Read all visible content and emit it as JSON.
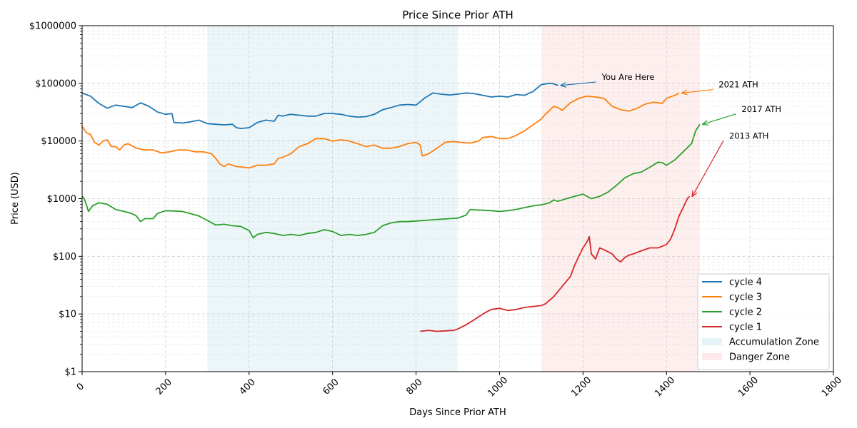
{
  "chart_data": {
    "type": "line",
    "title": "Price Since Prior ATH",
    "xlabel": "Days Since Prior ATH",
    "ylabel": "Price (USD)",
    "xlim": [
      0,
      1800
    ],
    "ylim": [
      1,
      1000000
    ],
    "yscale": "log",
    "grid": true,
    "legend_position": "lower-right",
    "x_ticks": [
      {
        "value": 0,
        "label": "0"
      },
      {
        "value": 200,
        "label": "200"
      },
      {
        "value": 400,
        "label": "400"
      },
      {
        "value": 600,
        "label": "600"
      },
      {
        "value": 800,
        "label": "800"
      },
      {
        "value": 1000,
        "label": "1000"
      },
      {
        "value": 1200,
        "label": "1200"
      },
      {
        "value": 1400,
        "label": "1400"
      },
      {
        "value": 1600,
        "label": "1600"
      },
      {
        "value": 1800,
        "label": "1800"
      }
    ],
    "y_ticks": [
      {
        "value": 1,
        "label": "$1"
      },
      {
        "value": 10,
        "label": "$10"
      },
      {
        "value": 100,
        "label": "$100"
      },
      {
        "value": 1000,
        "label": "$1000"
      },
      {
        "value": 10000,
        "label": "$10000"
      },
      {
        "value": 100000,
        "label": "$100000"
      },
      {
        "value": 1000000,
        "label": "$1000000"
      }
    ],
    "zones": [
      {
        "name": "Accumulation Zone",
        "x_start": 300,
        "x_end": 900,
        "color": "#dff0f5"
      },
      {
        "name": "Danger Zone",
        "x_start": 1100,
        "x_end": 1480,
        "color": "#fde4e4"
      }
    ],
    "series": [
      {
        "name": "cycle 4",
        "color": "#1f77b4",
        "points": [
          [
            0,
            68000
          ],
          [
            20,
            60000
          ],
          [
            40,
            45000
          ],
          [
            60,
            37000
          ],
          [
            80,
            42000
          ],
          [
            100,
            40000
          ],
          [
            120,
            38000
          ],
          [
            140,
            46000
          ],
          [
            160,
            40000
          ],
          [
            180,
            32000
          ],
          [
            200,
            29000
          ],
          [
            215,
            30000
          ],
          [
            220,
            21000
          ],
          [
            240,
            20500
          ],
          [
            260,
            21500
          ],
          [
            280,
            23000
          ],
          [
            300,
            20000
          ],
          [
            320,
            19500
          ],
          [
            340,
            19000
          ],
          [
            360,
            19500
          ],
          [
            370,
            17000
          ],
          [
            380,
            16500
          ],
          [
            400,
            17000
          ],
          [
            420,
            21000
          ],
          [
            440,
            23000
          ],
          [
            460,
            22000
          ],
          [
            470,
            28000
          ],
          [
            480,
            27000
          ],
          [
            500,
            29000
          ],
          [
            520,
            28000
          ],
          [
            540,
            27000
          ],
          [
            560,
            27000
          ],
          [
            580,
            30000
          ],
          [
            600,
            30000
          ],
          [
            620,
            29000
          ],
          [
            640,
            27000
          ],
          [
            660,
            26000
          ],
          [
            680,
            26500
          ],
          [
            700,
            29000
          ],
          [
            720,
            35000
          ],
          [
            740,
            38000
          ],
          [
            760,
            42000
          ],
          [
            780,
            43000
          ],
          [
            800,
            42000
          ],
          [
            820,
            55000
          ],
          [
            840,
            68000
          ],
          [
            860,
            65000
          ],
          [
            880,
            63000
          ],
          [
            900,
            65000
          ],
          [
            920,
            68000
          ],
          [
            940,
            66000
          ],
          [
            960,
            62000
          ],
          [
            980,
            58000
          ],
          [
            1000,
            60000
          ],
          [
            1020,
            58000
          ],
          [
            1040,
            64000
          ],
          [
            1060,
            62000
          ],
          [
            1080,
            72000
          ],
          [
            1100,
            95000
          ],
          [
            1120,
            100000
          ],
          [
            1130,
            98000
          ],
          [
            1140,
            92000
          ]
        ]
      },
      {
        "name": "cycle 3",
        "color": "#ff7f0e",
        "points": [
          [
            0,
            18000
          ],
          [
            10,
            14000
          ],
          [
            20,
            13000
          ],
          [
            30,
            9500
          ],
          [
            40,
            8500
          ],
          [
            50,
            10000
          ],
          [
            60,
            10500
          ],
          [
            70,
            8000
          ],
          [
            80,
            8000
          ],
          [
            90,
            7000
          ],
          [
            100,
            8500
          ],
          [
            110,
            9000
          ],
          [
            130,
            7500
          ],
          [
            150,
            7000
          ],
          [
            170,
            7000
          ],
          [
            190,
            6200
          ],
          [
            210,
            6500
          ],
          [
            230,
            7000
          ],
          [
            250,
            7000
          ],
          [
            270,
            6500
          ],
          [
            290,
            6500
          ],
          [
            310,
            6000
          ],
          [
            320,
            5000
          ],
          [
            330,
            4000
          ],
          [
            340,
            3600
          ],
          [
            350,
            4000
          ],
          [
            370,
            3600
          ],
          [
            390,
            3500
          ],
          [
            400,
            3400
          ],
          [
            420,
            3800
          ],
          [
            440,
            3800
          ],
          [
            460,
            4000
          ],
          [
            470,
            5000
          ],
          [
            480,
            5200
          ],
          [
            500,
            6000
          ],
          [
            520,
            8000
          ],
          [
            540,
            9000
          ],
          [
            560,
            11000
          ],
          [
            580,
            11000
          ],
          [
            600,
            10000
          ],
          [
            620,
            10500
          ],
          [
            640,
            10000
          ],
          [
            660,
            9000
          ],
          [
            680,
            8000
          ],
          [
            700,
            8500
          ],
          [
            720,
            7500
          ],
          [
            740,
            7500
          ],
          [
            760,
            8000
          ],
          [
            780,
            9000
          ],
          [
            800,
            9500
          ],
          [
            810,
            8500
          ],
          [
            815,
            5500
          ],
          [
            830,
            6000
          ],
          [
            850,
            7500
          ],
          [
            870,
            9500
          ],
          [
            890,
            9800
          ],
          [
            910,
            9400
          ],
          [
            930,
            9200
          ],
          [
            950,
            10000
          ],
          [
            960,
            11500
          ],
          [
            980,
            12000
          ],
          [
            1000,
            11000
          ],
          [
            1020,
            11000
          ],
          [
            1040,
            12500
          ],
          [
            1060,
            15000
          ],
          [
            1080,
            19000
          ],
          [
            1100,
            24000
          ],
          [
            1110,
            29000
          ],
          [
            1120,
            34000
          ],
          [
            1130,
            40000
          ],
          [
            1140,
            38000
          ],
          [
            1150,
            34000
          ],
          [
            1170,
            46000
          ],
          [
            1190,
            55000
          ],
          [
            1210,
            60000
          ],
          [
            1230,
            58000
          ],
          [
            1250,
            55000
          ],
          [
            1270,
            40000
          ],
          [
            1290,
            35000
          ],
          [
            1310,
            33000
          ],
          [
            1330,
            37000
          ],
          [
            1350,
            44000
          ],
          [
            1370,
            47000
          ],
          [
            1390,
            45000
          ],
          [
            1400,
            55000
          ],
          [
            1420,
            62000
          ],
          [
            1430,
            68000
          ]
        ]
      },
      {
        "name": "cycle 2",
        "color": "#2ca02c",
        "points": [
          [
            0,
            1100
          ],
          [
            5,
            1000
          ],
          [
            10,
            800
          ],
          [
            15,
            600
          ],
          [
            25,
            750
          ],
          [
            40,
            850
          ],
          [
            60,
            800
          ],
          [
            80,
            650
          ],
          [
            100,
            600
          ],
          [
            120,
            550
          ],
          [
            130,
            500
          ],
          [
            140,
            400
          ],
          [
            150,
            450
          ],
          [
            170,
            450
          ],
          [
            180,
            550
          ],
          [
            200,
            620
          ],
          [
            220,
            610
          ],
          [
            240,
            600
          ],
          [
            260,
            550
          ],
          [
            280,
            500
          ],
          [
            300,
            420
          ],
          [
            320,
            350
          ],
          [
            340,
            360
          ],
          [
            360,
            340
          ],
          [
            380,
            330
          ],
          [
            400,
            280
          ],
          [
            410,
            210
          ],
          [
            420,
            240
          ],
          [
            440,
            260
          ],
          [
            460,
            250
          ],
          [
            480,
            230
          ],
          [
            500,
            240
          ],
          [
            520,
            230
          ],
          [
            540,
            250
          ],
          [
            560,
            260
          ],
          [
            580,
            290
          ],
          [
            600,
            270
          ],
          [
            620,
            230
          ],
          [
            640,
            240
          ],
          [
            660,
            230
          ],
          [
            680,
            240
          ],
          [
            700,
            260
          ],
          [
            720,
            340
          ],
          [
            740,
            380
          ],
          [
            760,
            400
          ],
          [
            780,
            400
          ],
          [
            800,
            410
          ],
          [
            820,
            420
          ],
          [
            840,
            430
          ],
          [
            860,
            440
          ],
          [
            880,
            450
          ],
          [
            900,
            460
          ],
          [
            920,
            520
          ],
          [
            930,
            650
          ],
          [
            940,
            640
          ],
          [
            960,
            630
          ],
          [
            980,
            620
          ],
          [
            1000,
            600
          ],
          [
            1020,
            620
          ],
          [
            1040,
            650
          ],
          [
            1060,
            700
          ],
          [
            1080,
            750
          ],
          [
            1100,
            780
          ],
          [
            1120,
            850
          ],
          [
            1130,
            950
          ],
          [
            1140,
            900
          ],
          [
            1160,
            1000
          ],
          [
            1180,
            1100
          ],
          [
            1200,
            1200
          ],
          [
            1220,
            1000
          ],
          [
            1240,
            1100
          ],
          [
            1260,
            1300
          ],
          [
            1280,
            1700
          ],
          [
            1300,
            2300
          ],
          [
            1320,
            2700
          ],
          [
            1340,
            2900
          ],
          [
            1360,
            3500
          ],
          [
            1380,
            4300
          ],
          [
            1390,
            4200
          ],
          [
            1400,
            3800
          ],
          [
            1420,
            4700
          ],
          [
            1440,
            6500
          ],
          [
            1460,
            9000
          ],
          [
            1470,
            15000
          ],
          [
            1480,
            19500
          ]
        ]
      },
      {
        "name": "cycle 1",
        "color": "#d62728",
        "points": [
          [
            810,
            5
          ],
          [
            830,
            5.2
          ],
          [
            850,
            5
          ],
          [
            870,
            5.1
          ],
          [
            890,
            5.2
          ],
          [
            900,
            5.5
          ],
          [
            920,
            6.5
          ],
          [
            940,
            8
          ],
          [
            960,
            10
          ],
          [
            980,
            12
          ],
          [
            1000,
            12.5
          ],
          [
            1020,
            11.5
          ],
          [
            1040,
            12
          ],
          [
            1060,
            13
          ],
          [
            1080,
            13.5
          ],
          [
            1100,
            14
          ],
          [
            1110,
            15
          ],
          [
            1130,
            20
          ],
          [
            1150,
            30
          ],
          [
            1170,
            45
          ],
          [
            1180,
            70
          ],
          [
            1190,
            100
          ],
          [
            1200,
            140
          ],
          [
            1210,
            180
          ],
          [
            1215,
            220
          ],
          [
            1220,
            110
          ],
          [
            1230,
            90
          ],
          [
            1240,
            140
          ],
          [
            1250,
            130
          ],
          [
            1260,
            120
          ],
          [
            1270,
            110
          ],
          [
            1280,
            90
          ],
          [
            1290,
            80
          ],
          [
            1300,
            95
          ],
          [
            1310,
            105
          ],
          [
            1320,
            110
          ],
          [
            1340,
            125
          ],
          [
            1360,
            140
          ],
          [
            1380,
            140
          ],
          [
            1390,
            150
          ],
          [
            1400,
            160
          ],
          [
            1410,
            200
          ],
          [
            1420,
            300
          ],
          [
            1430,
            500
          ],
          [
            1440,
            700
          ],
          [
            1450,
            1000
          ],
          [
            1455,
            1100
          ]
        ]
      }
    ],
    "annotations": [
      {
        "text": "You Are Here",
        "target": [
          1140,
          92000
        ],
        "text_pos": [
          1245,
          115000
        ],
        "color": "#1f77b4"
      },
      {
        "text": "2021 ATH",
        "target": [
          1430,
          68000
        ],
        "text_pos": [
          1525,
          85000
        ],
        "color": "#ff7f0e"
      },
      {
        "text": "2017 ATH",
        "target": [
          1480,
          19500
        ],
        "text_pos": [
          1580,
          32000
        ],
        "color": "#2ca02c"
      },
      {
        "text": "2013 ATH",
        "target": [
          1455,
          1100
        ],
        "text_pos": [
          1550,
          11000
        ],
        "color": "#d62728"
      }
    ]
  }
}
